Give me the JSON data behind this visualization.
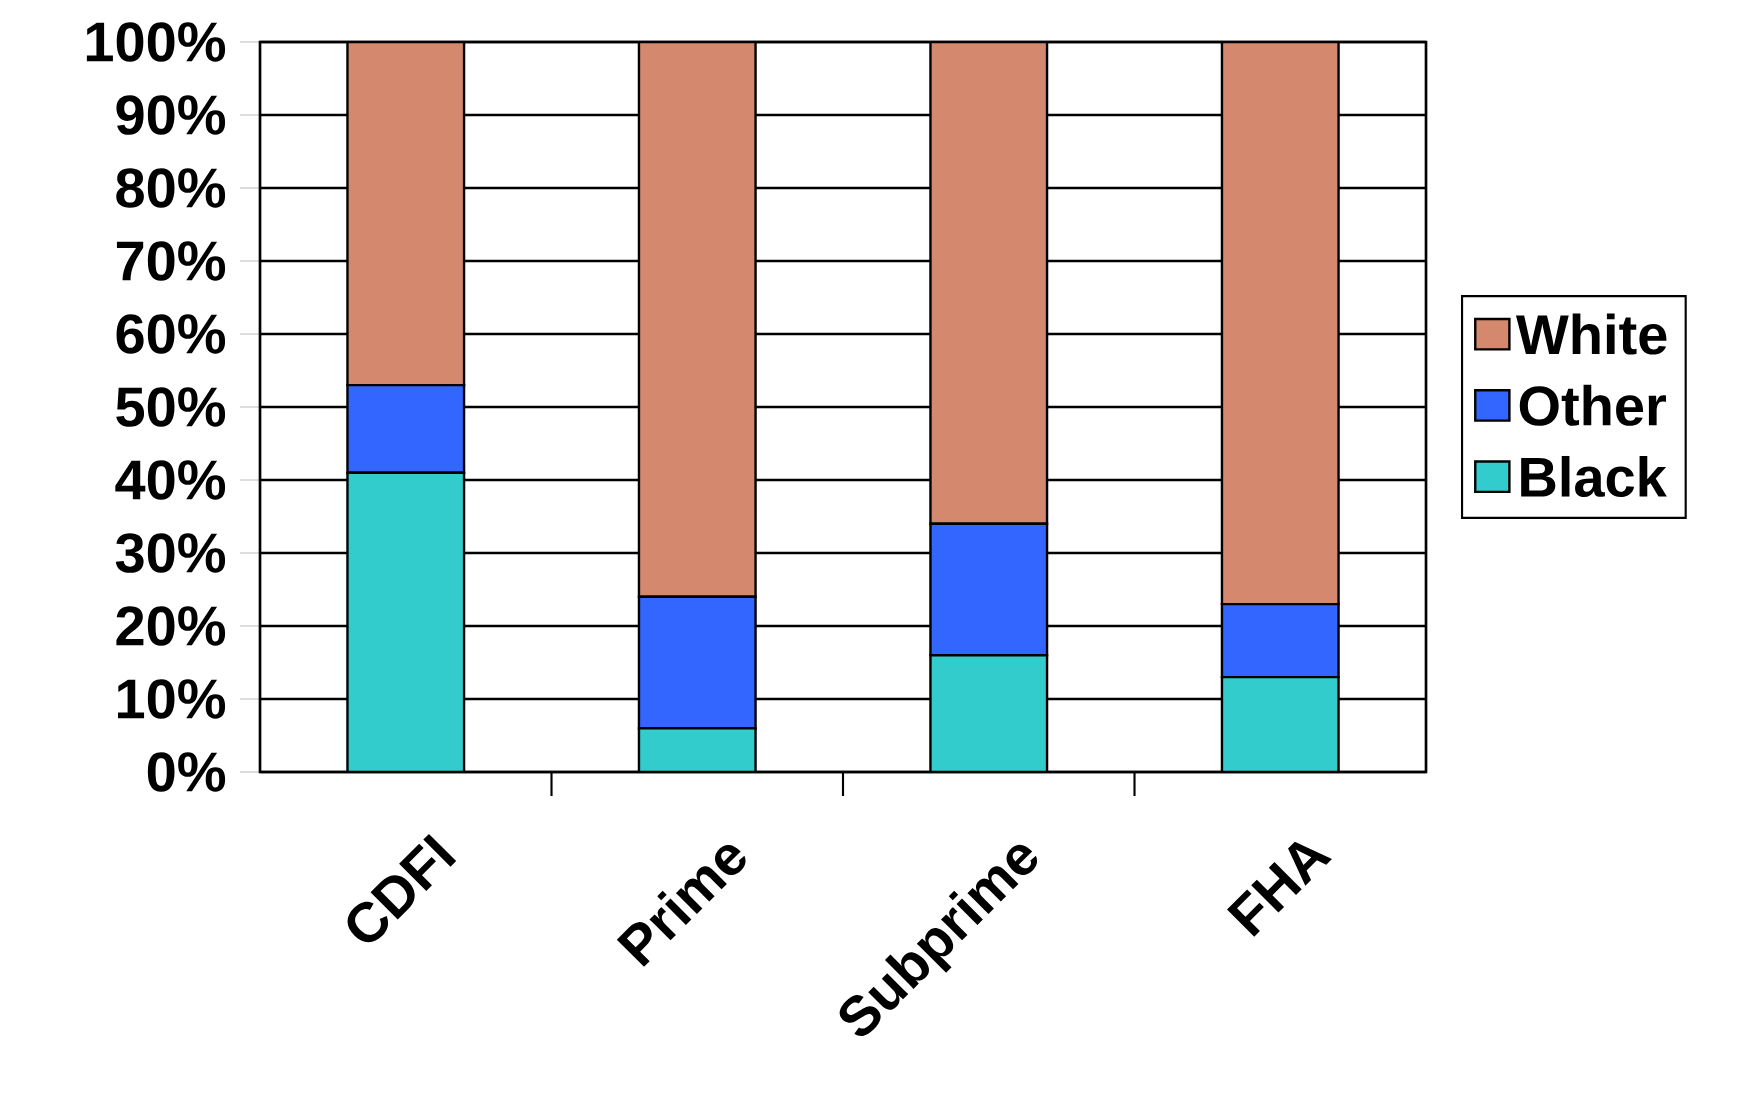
{
  "chart_data": {
    "type": "bar",
    "stacked": true,
    "categories": [
      "CDFI",
      "Prime",
      "Subprime",
      "FHA"
    ],
    "series": [
      {
        "name": "Black",
        "color": "#33cccc",
        "values": [
          41,
          6,
          16,
          13
        ]
      },
      {
        "name": "Other",
        "color": "#3366ff",
        "values": [
          12,
          18,
          18,
          10
        ]
      },
      {
        "name": "White",
        "color": "#d4886e",
        "values": [
          47,
          76,
          66,
          77
        ]
      }
    ],
    "ylim": [
      0,
      100
    ],
    "yticks": [
      {
        "value": 0,
        "label": "0%"
      },
      {
        "value": 10,
        "label": "10%"
      },
      {
        "value": 20,
        "label": "20%"
      },
      {
        "value": 30,
        "label": "30%"
      },
      {
        "value": 40,
        "label": "40%"
      },
      {
        "value": 50,
        "label": "50%"
      },
      {
        "value": 60,
        "label": "60%"
      },
      {
        "value": 70,
        "label": "70%"
      },
      {
        "value": 80,
        "label": "80%"
      },
      {
        "value": 90,
        "label": "90%"
      },
      {
        "value": 100,
        "label": "100%"
      }
    ],
    "grid": "y",
    "legend": "right"
  }
}
